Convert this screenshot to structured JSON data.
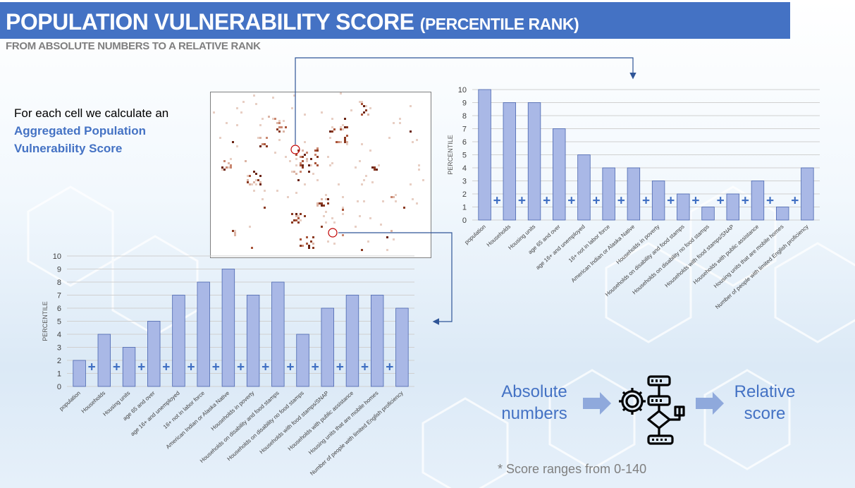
{
  "header": {
    "title": "POPULATION VULNERABILITY SCORE",
    "title_paren": "(PERCENTILE RANK)",
    "subtitle": "FROM ABSOLUTE NUMBERS TO A RELATIVE RANK"
  },
  "description": {
    "line": "For each cell we calculate an",
    "highlight": "Aggregated Population Vulnerability Score"
  },
  "flow": {
    "left": "Absolute numbers",
    "right": "Relative score",
    "icon": "gear-flowchart-icon"
  },
  "footnote": "* Score ranges from 0-140",
  "colors": {
    "title_bar": "#4472c4",
    "accent": "#4472c4",
    "bar_fill": "#a9b8e6",
    "bar_stroke": "#4a66b0",
    "plus": "#3e6ec2",
    "marker": "#c00000"
  },
  "chart_data": [
    {
      "type": "bar",
      "ylabel": "PERCENTILE",
      "ylim": [
        0,
        10
      ],
      "yticks": [
        "0",
        "1",
        "2",
        "3",
        "4",
        "5",
        "6",
        "7",
        "8",
        "9",
        "10"
      ],
      "grid": true,
      "categories": [
        "population",
        "Households",
        "Housing units",
        "age 65 and over",
        "age 16+ and unemployed",
        "16+ not in labor force",
        "American Indian or Alaska Native",
        "Households in poverty",
        "Households on disability and food stamps",
        "Households on disability no food stamps",
        "Households with food stamps/SNAP",
        "Households with public assistance",
        "Housing units that are mobile homes",
        "Number of people with limited English proficiency"
      ],
      "values": [
        10,
        9,
        9,
        7,
        5,
        4,
        4,
        3,
        2,
        1,
        2,
        3,
        1,
        4
      ]
    },
    {
      "type": "bar",
      "ylabel": "PERCENTILE",
      "ylim": [
        0,
        10
      ],
      "yticks": [
        "0",
        "1",
        "2",
        "3",
        "4",
        "5",
        "6",
        "7",
        "8",
        "9",
        "10"
      ],
      "grid": true,
      "categories": [
        "population",
        "Households",
        "Housing units",
        "age 65 and over",
        "age 16+ and unemployed",
        "16+ not in labor force",
        "American Indian or Alaska Native",
        "Households in poverty",
        "Households on disability and food stamps",
        "Households on disability no food stamps",
        "Households with food stamps/SNAP",
        "Households with public assistance",
        "Housing units that are mobile homes",
        "Number of people with limited English proficiency"
      ],
      "values": [
        2,
        4,
        3,
        5,
        7,
        8,
        9,
        7,
        8,
        4,
        6,
        7,
        7,
        6
      ]
    }
  ]
}
